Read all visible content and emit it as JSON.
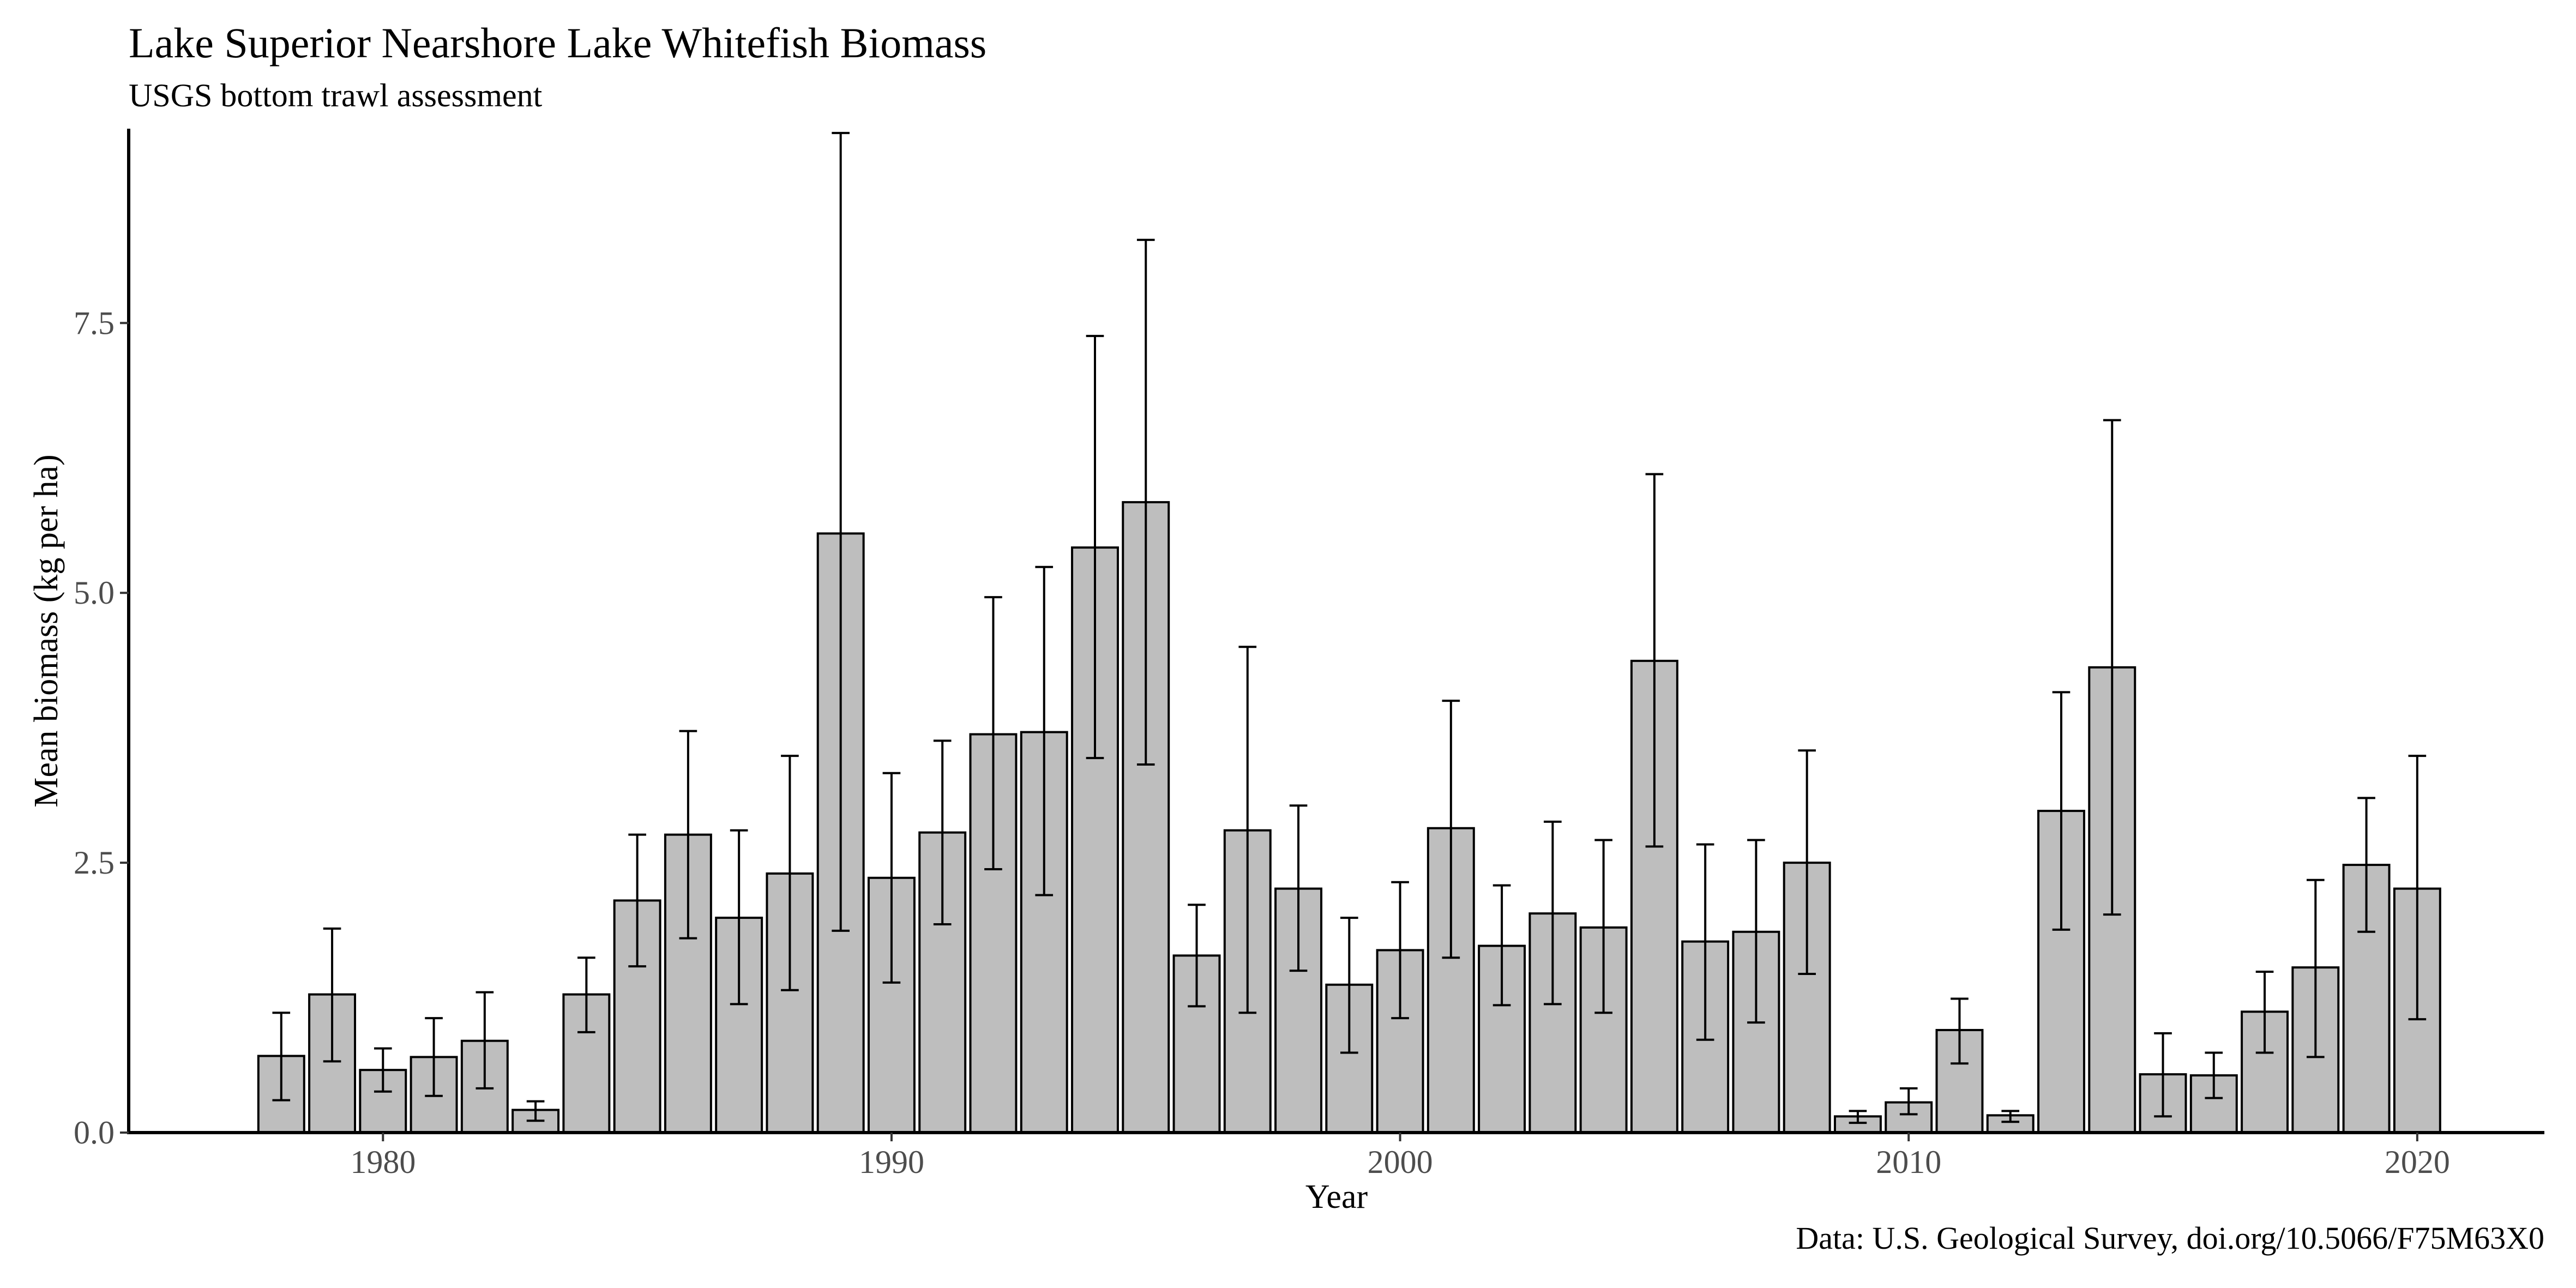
{
  "chart_data": {
    "type": "bar",
    "title": "Lake Superior Nearshore Lake Whitefish Biomass",
    "subtitle": "USGS bottom trawl assessment",
    "caption": "Data: U.S. Geological Survey, doi.org/10.5066/F75M63X0",
    "xlabel": "Year",
    "ylabel": "Mean biomass (kg per ha)",
    "xlim": [
      1975,
      2022.5
    ],
    "ylim": [
      0,
      9.3
    ],
    "x_ticks": [
      1980,
      1990,
      2000,
      2010,
      2020
    ],
    "y_ticks": [
      0,
      2.5,
      5,
      7.5
    ],
    "y_tick_labels": [
      "0.0",
      "2.5",
      "5.0",
      "7.5"
    ],
    "grid": false,
    "bar_fill": "#bebebe",
    "bar_stroke": "#000000",
    "years": [
      1978,
      1979,
      1980,
      1981,
      1982,
      1983,
      1984,
      1985,
      1986,
      1987,
      1988,
      1989,
      1990,
      1991,
      1992,
      1993,
      1994,
      1995,
      1996,
      1997,
      1998,
      1999,
      2000,
      2001,
      2002,
      2003,
      2004,
      2005,
      2006,
      2007,
      2008,
      2009,
      2010,
      2011,
      2012,
      2013,
      2014,
      2015,
      2016,
      2017,
      2018,
      2019,
      2020
    ],
    "values": [
      0.71,
      1.28,
      0.58,
      0.7,
      0.85,
      0.21,
      1.28,
      2.15,
      2.76,
      1.99,
      2.4,
      5.55,
      2.36,
      2.78,
      3.69,
      3.71,
      5.42,
      5.84,
      1.64,
      2.8,
      2.26,
      1.37,
      1.69,
      2.82,
      1.73,
      2.03,
      1.9,
      4.37,
      1.77,
      1.86,
      2.5,
      0.15,
      0.28,
      0.95,
      0.16,
      2.98,
      4.31,
      0.54,
      0.53,
      1.12,
      1.53,
      2.48,
      2.26
    ],
    "error_low": [
      0.3,
      0.66,
      0.38,
      0.34,
      0.41,
      0.11,
      0.93,
      1.54,
      1.8,
      1.19,
      1.32,
      1.87,
      1.39,
      1.93,
      2.44,
      2.2,
      3.47,
      3.41,
      1.17,
      1.11,
      1.5,
      0.74,
      1.06,
      1.62,
      1.18,
      1.19,
      1.11,
      2.65,
      0.86,
      1.02,
      1.47,
      0.09,
      0.17,
      0.64,
      0.1,
      1.88,
      2.02,
      0.15,
      0.32,
      0.74,
      0.7,
      1.86,
      1.05
    ],
    "error_high": [
      1.11,
      1.89,
      0.78,
      1.06,
      1.3,
      0.29,
      1.62,
      2.76,
      3.72,
      2.8,
      3.49,
      9.26,
      3.33,
      3.63,
      4.96,
      5.24,
      7.38,
      8.27,
      2.11,
      4.5,
      3.03,
      1.99,
      2.32,
      4.0,
      2.29,
      2.88,
      2.71,
      6.1,
      2.67,
      2.71,
      3.54,
      0.2,
      0.41,
      1.24,
      0.2,
      4.08,
      6.6,
      0.92,
      0.74,
      1.49,
      2.34,
      3.1,
      3.49
    ]
  }
}
